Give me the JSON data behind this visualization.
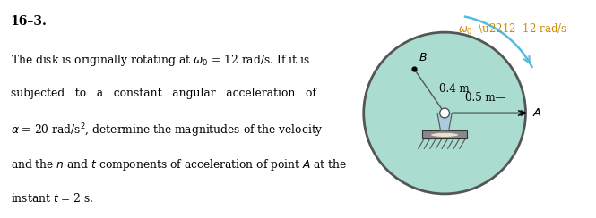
{
  "title_num": "16–3.",
  "line1": "The disk is originally rotating at $\\omega_0$ = 12 rad/s. If it is",
  "line2": "subjected   to   a   constant   angular   acceleration   of",
  "line3": "$\\alpha$ = 20 rad/s$^2$, determine the magnitudes of the velocity",
  "line4": "and the $n$ and $t$ components of acceleration of point $A$ at the",
  "line5": "instant $t$ = 2 s.",
  "disk_color": "#aaddd0",
  "disk_edge_color": "#555555",
  "arrow_color": "#55bbdd",
  "text_color_orange": "#cc8800",
  "bg_color": "#ffffff",
  "mount_color": "#aaccdd",
  "base_color": "#888888"
}
